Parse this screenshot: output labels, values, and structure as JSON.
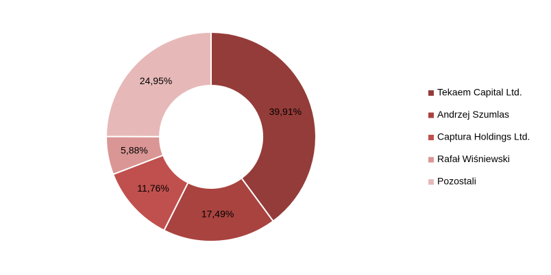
{
  "chart_data": {
    "type": "donut",
    "categories": [
      "Tekaem Capital Ltd.",
      "Andrzej Szumlas",
      "Captura Holdings Ltd.",
      "Rafał Wiśniewski",
      "Pozostali"
    ],
    "values": [
      39.91,
      17.49,
      11.76,
      5.88,
      24.95
    ],
    "value_labels": [
      "39,91%",
      "17,49%",
      "11,76%",
      "5,88%",
      "24,95%"
    ],
    "colors": [
      "#943c39",
      "#a9433f",
      "#c0504d",
      "#d99694",
      "#e6b9b8"
    ],
    "legend": "right"
  }
}
